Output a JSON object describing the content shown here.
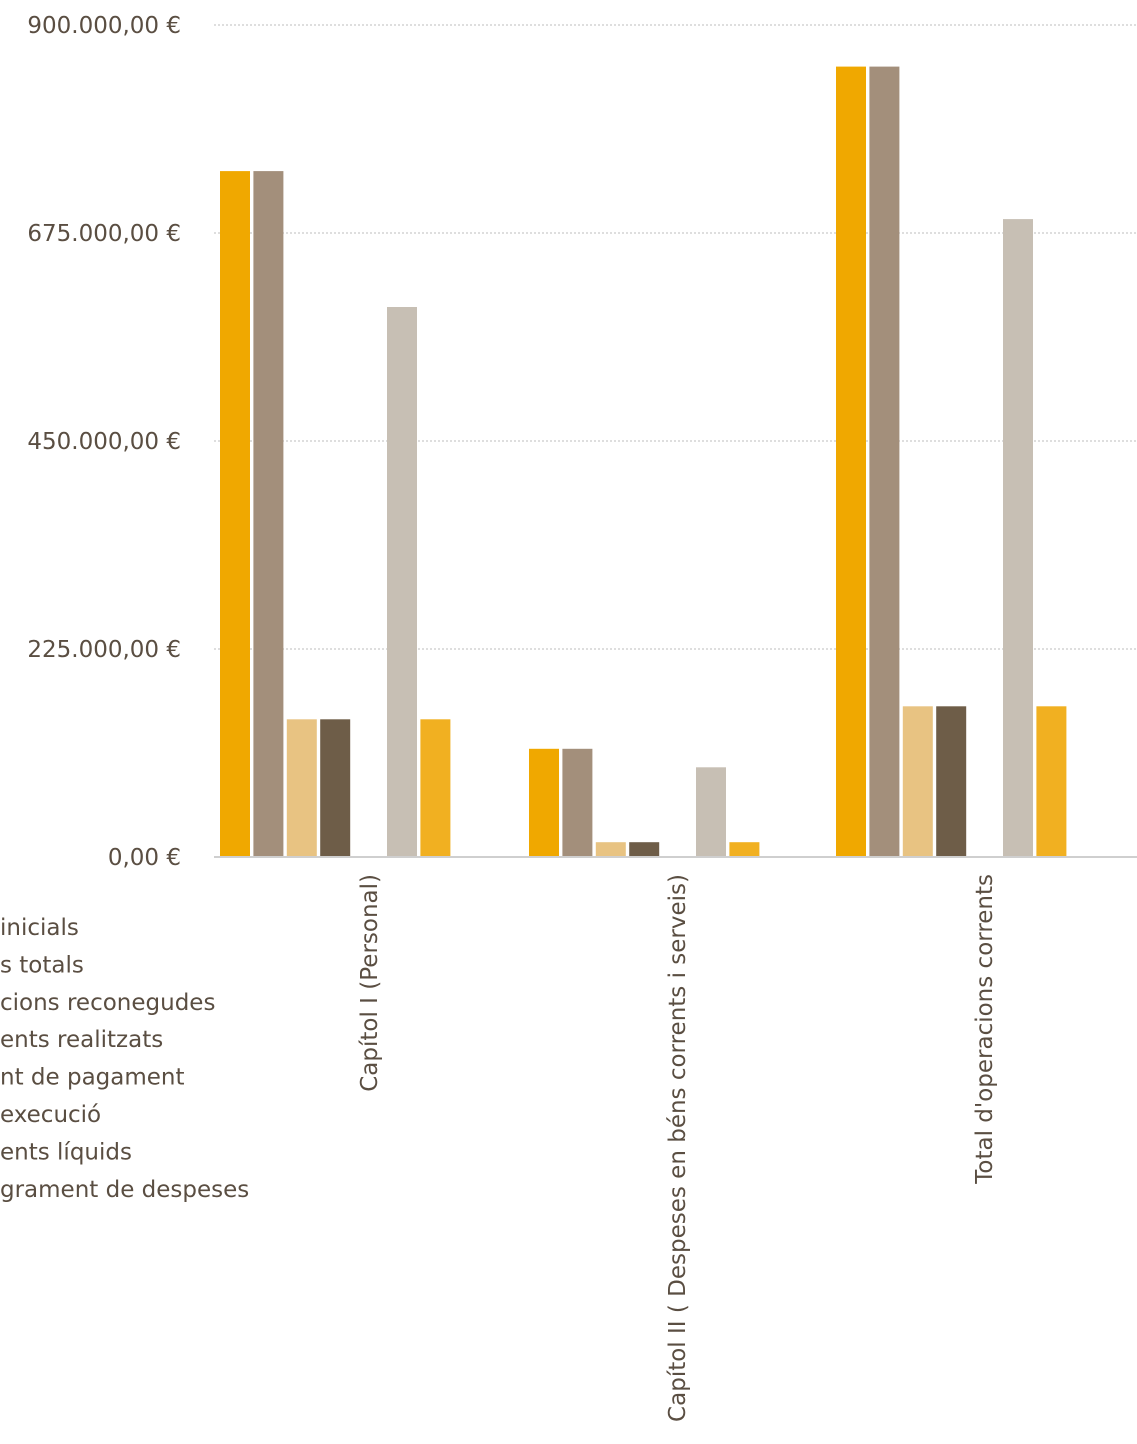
{
  "chart_data": {
    "type": "bar",
    "categories": [
      "Capítol I (Personal)",
      "Capítol II ( Despeses en béns corrents i serveis)",
      "Total d'operacions corrents"
    ],
    "series": [
      {
        "name": "Crèdits inicials",
        "color": "#f0a800",
        "values": [
          742000,
          117000,
          855000
        ]
      },
      {
        "name": "Crèdits totals",
        "color": "#a38f7b",
        "values": [
          742000,
          117000,
          855000
        ]
      },
      {
        "name": "Obligacions reconegudes",
        "color": "#e8c382",
        "values": [
          149000,
          16000,
          163000
        ]
      },
      {
        "name": "Pagaments realitzats",
        "color": "#6e5d48",
        "values": [
          149000,
          16000,
          163000
        ]
      },
      {
        "name": "Pendent de pagament",
        "color": "#b9b9b9",
        "values": [
          0,
          0,
          0
        ]
      },
      {
        "name": "Grau d'execució",
        "color": "#c7bfb4",
        "values": [
          595000,
          97000,
          690000
        ]
      },
      {
        "name": "Pagaments líquids",
        "color": "#f1b021",
        "values": [
          149000,
          16000,
          163000
        ]
      },
      {
        "name": "Romanent de despeses",
        "color": "#d9d9d9",
        "values": [
          0,
          0,
          0
        ]
      }
    ],
    "legend_visible_text": [
      "inicials",
      "s totals",
      "cions reconegudes",
      "ents realitzats",
      "nt de pagament",
      "execució",
      "ents líquids",
      "grament de despeses"
    ],
    "ylim": [
      0,
      900000
    ],
    "yticks": [
      "0,00 €",
      "225.000,00 €",
      "450.000,00 €",
      "675.000,00 €",
      "900.000,00 €"
    ],
    "ytick_values": [
      0,
      225000,
      450000,
      675000,
      900000
    ],
    "grid": true,
    "grid_style": "dotted",
    "legend_position": "bottom-left"
  }
}
